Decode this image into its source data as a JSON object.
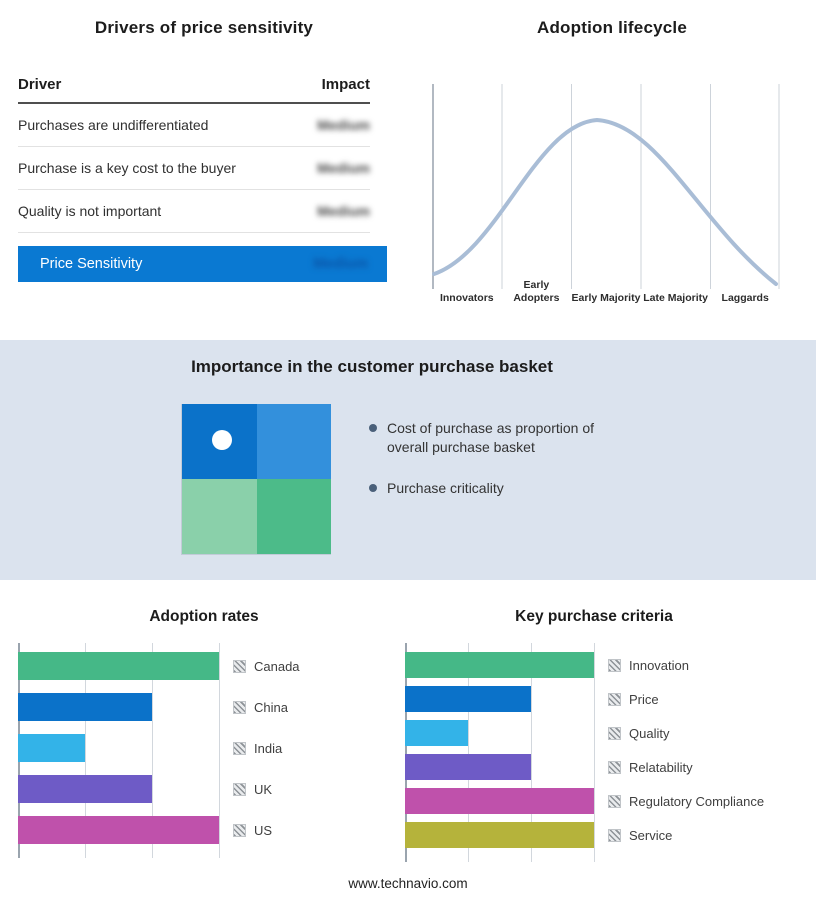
{
  "page": {
    "footer": "www.technavio.com"
  },
  "drivers_panel": {
    "title": "Drivers of price sensitivity",
    "col_driver": "Driver",
    "col_impact": "Impact",
    "rows": [
      {
        "driver": "Purchases are undifferentiated",
        "impact": "Medium"
      },
      {
        "driver": "Purchase is a key cost to the buyer",
        "impact": "Medium"
      },
      {
        "driver": "Quality is not important",
        "impact": "Medium"
      }
    ],
    "highlight": {
      "label": "Price Sensitivity",
      "impact": "Medium",
      "color": "#0a79d2"
    }
  },
  "basket_panel": {
    "title": "Importance in the customer purchase basket",
    "bullets": [
      "Cost of purchase as proportion of overall purchase basket",
      "Purchase criticality"
    ],
    "quadrant_colors": [
      "#0b72c9",
      "#3390dc",
      "#8ad0aa",
      "#4cbb89"
    ],
    "band_background": "#dbe3ee"
  },
  "chart_data": [
    {
      "id": "adoption_rates",
      "type": "bar",
      "orientation": "horizontal",
      "title": "Adoption rates",
      "categories": [
        "Canada",
        "China",
        "India",
        "UK",
        "US"
      ],
      "values": [
        3,
        2,
        1,
        2,
        3
      ],
      "xlim": [
        0,
        3
      ],
      "gridline_count": 4,
      "colors": [
        "#45b887",
        "#0b72c9",
        "#33b3e8",
        "#6e5bc6",
        "#bf51ab"
      ],
      "legend_position": "right"
    },
    {
      "id": "key_purchase_criteria",
      "type": "bar",
      "orientation": "horizontal",
      "title": "Key purchase criteria",
      "categories": [
        "Innovation",
        "Price",
        "Quality",
        "Relatability",
        "Regulatory Compliance",
        "Service"
      ],
      "values": [
        3,
        2,
        1,
        2,
        3,
        3
      ],
      "xlim": [
        0,
        3
      ],
      "gridline_count": 4,
      "colors": [
        "#45b887",
        "#0b72c9",
        "#33b3e8",
        "#6e5bc6",
        "#bf51ab",
        "#b5b33b"
      ],
      "legend_position": "right"
    },
    {
      "id": "adoption_lifecycle",
      "type": "line",
      "title": "Adoption lifecycle",
      "x_stages": [
        "Innovators",
        "Early Adopters",
        "Early Majority",
        "Late Majority",
        "Laggards"
      ],
      "shape": "bell curve peaking at Early Majority",
      "line_color": "#a9bdd6"
    }
  ]
}
